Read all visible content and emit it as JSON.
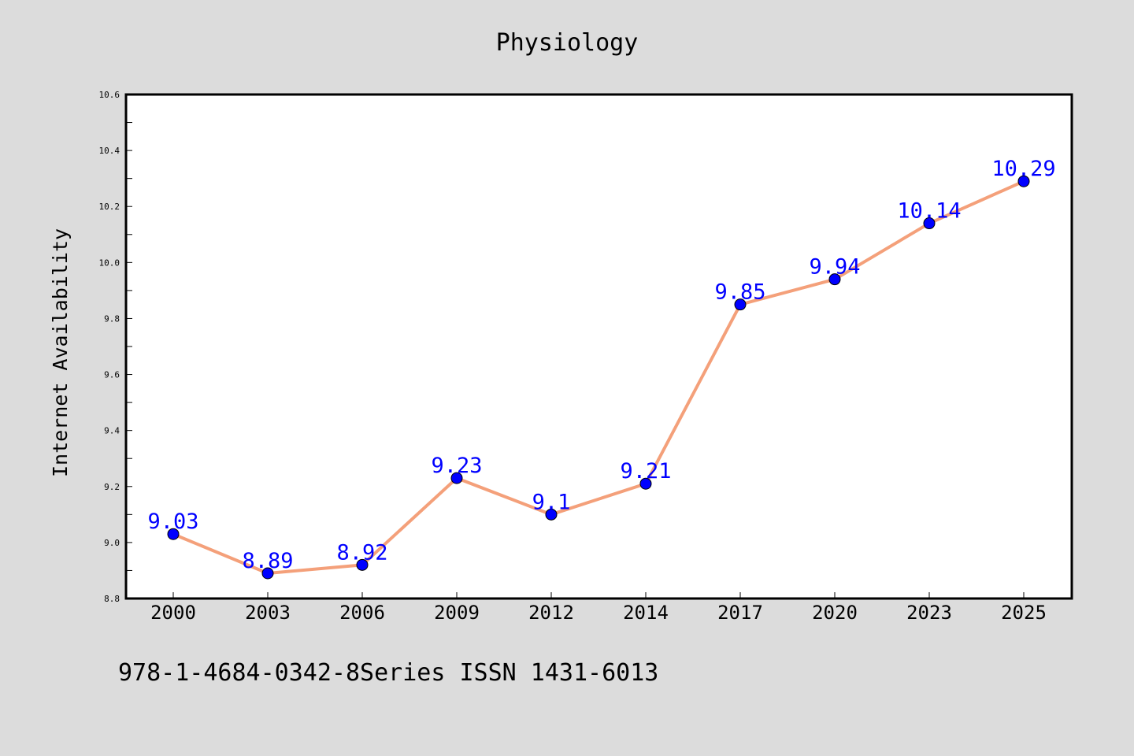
{
  "chart_data": {
    "type": "line",
    "title": "Physiology",
    "xlabel": "",
    "ylabel": "Internet Availability",
    "categories": [
      "2000",
      "2003",
      "2006",
      "2009",
      "2012",
      "2014",
      "2017",
      "2020",
      "2023",
      "2025"
    ],
    "series": [
      {
        "values": [
          9.03,
          8.89,
          8.92,
          9.23,
          9.1,
          9.21,
          9.85,
          9.94,
          10.14,
          10.29
        ],
        "labels": [
          "9.03",
          "8.89",
          "8.92",
          "9.23",
          "9.1",
          "9.21",
          "9.85",
          "9.94",
          "10.14",
          "10.29"
        ],
        "line_color": "#f4a07a",
        "marker_color": "#0000ff",
        "label_color": "#0000ff"
      }
    ],
    "ylim": [
      8.8,
      10.6
    ],
    "yticks": [
      "8.8",
      "9.0",
      "9.2",
      "9.4",
      "9.6",
      "9.8",
      "10.0",
      "10.2",
      "10.4",
      "10.6"
    ],
    "grid": false,
    "legend": "none"
  },
  "footer_text": "978-1-4684-0342-8Series ISSN 1431-6013",
  "colors": {
    "background": "#dcdcdc",
    "plot_background": "#ffffff",
    "axis": "#000000"
  }
}
